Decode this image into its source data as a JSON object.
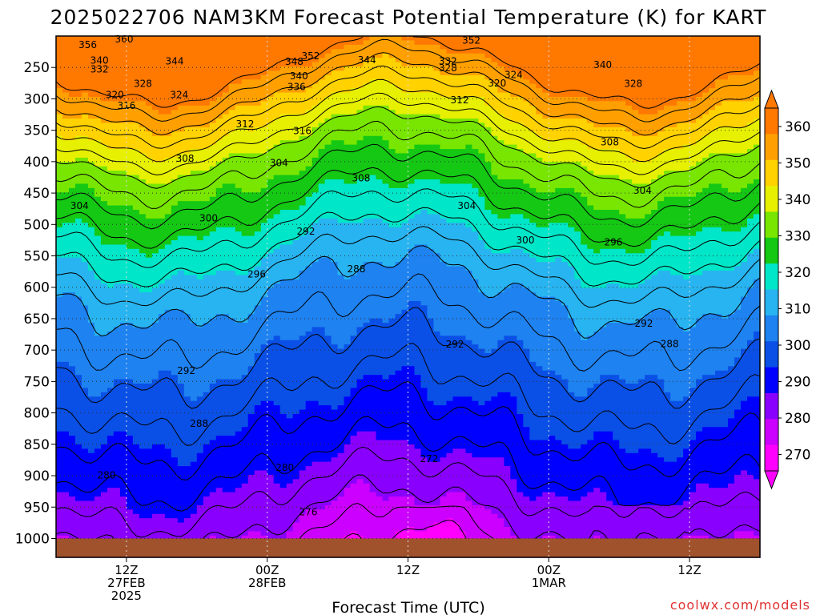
{
  "chart_data": {
    "type": "contour",
    "title": "2025022706 NAM3KM Forecast Potential Temperature (K) for KART",
    "xlabel": "Forecast Time (UTC)",
    "credit": "coolwx.com/models",
    "y_ticks": [
      "250",
      "300",
      "350",
      "400",
      "450",
      "500",
      "550",
      "600",
      "650",
      "700",
      "750",
      "800",
      "850",
      "900",
      "950",
      "1000"
    ],
    "x_ticks": [
      {
        "lines": [
          "12Z",
          "27FEB",
          "2025"
        ]
      },
      {
        "lines": [
          "00Z",
          "28FEB"
        ]
      },
      {
        "lines": [
          "12Z"
        ]
      },
      {
        "lines": [
          "00Z",
          "1MAR"
        ]
      },
      {
        "lines": [
          "12Z"
        ]
      }
    ],
    "x_tick_hours": [
      12,
      24,
      36,
      48,
      60
    ],
    "x_range_hours": [
      6,
      66
    ],
    "y_range_hpa": [
      200,
      1030
    ],
    "colorbar": {
      "ticks": [
        "360",
        "350",
        "340",
        "330",
        "320",
        "310",
        "300",
        "290",
        "280",
        "270"
      ],
      "levels": [
        270,
        280,
        290,
        300,
        310,
        320,
        330,
        340,
        350,
        360
      ],
      "colors": [
        "#ff00ff",
        "#cc00ff",
        "#8a00ff",
        "#0000ff",
        "#0a50e6",
        "#1e82f0",
        "#28b4f0",
        "#00e6c8",
        "#14c814",
        "#78e600",
        "#e6f000",
        "#ffd200",
        "#ffa000",
        "#ff7800"
      ]
    },
    "contour_labels": [
      {
        "text": "356",
        "h": 8.7,
        "p": 214
      },
      {
        "text": "360",
        "h": 11.8,
        "p": 205
      },
      {
        "text": "352",
        "h": 41.4,
        "p": 207
      },
      {
        "text": "352",
        "h": 27.7,
        "p": 232
      },
      {
        "text": "348",
        "h": 26.3,
        "p": 241
      },
      {
        "text": "344",
        "h": 32.5,
        "p": 238
      },
      {
        "text": "344",
        "h": 16.1,
        "p": 240
      },
      {
        "text": "340",
        "h": 9.7,
        "p": 239
      },
      {
        "text": "332",
        "h": 9.7,
        "p": 253
      },
      {
        "text": "332",
        "h": 39.4,
        "p": 240
      },
      {
        "text": "328",
        "h": 39.4,
        "p": 251
      },
      {
        "text": "324",
        "h": 45.0,
        "p": 262
      },
      {
        "text": "320",
        "h": 43.6,
        "p": 275
      },
      {
        "text": "340",
        "h": 52.6,
        "p": 246
      },
      {
        "text": "328",
        "h": 55.2,
        "p": 276
      },
      {
        "text": "328",
        "h": 13.4,
        "p": 276
      },
      {
        "text": "324",
        "h": 16.5,
        "p": 294
      },
      {
        "text": "320",
        "h": 11.0,
        "p": 294
      },
      {
        "text": "340",
        "h": 26.7,
        "p": 264
      },
      {
        "text": "336",
        "h": 26.5,
        "p": 281
      },
      {
        "text": "316",
        "h": 12.0,
        "p": 311
      },
      {
        "text": "312",
        "h": 40.4,
        "p": 302
      },
      {
        "text": "312",
        "h": 22.1,
        "p": 340
      },
      {
        "text": "316",
        "h": 27.0,
        "p": 351
      },
      {
        "text": "308",
        "h": 53.2,
        "p": 369
      },
      {
        "text": "308",
        "h": 17.0,
        "p": 395
      },
      {
        "text": "304",
        "h": 25.0,
        "p": 402
      },
      {
        "text": "308",
        "h": 32.0,
        "p": 426
      },
      {
        "text": "304",
        "h": 56.0,
        "p": 446
      },
      {
        "text": "304",
        "h": 8.0,
        "p": 470
      },
      {
        "text": "304",
        "h": 41.0,
        "p": 470
      },
      {
        "text": "300",
        "h": 19.0,
        "p": 490
      },
      {
        "text": "300",
        "h": 46.0,
        "p": 525
      },
      {
        "text": "296",
        "h": 53.5,
        "p": 528
      },
      {
        "text": "292",
        "h": 27.3,
        "p": 511
      },
      {
        "text": "296",
        "h": 23.1,
        "p": 579
      },
      {
        "text": "288",
        "h": 31.6,
        "p": 571
      },
      {
        "text": "292",
        "h": 56.1,
        "p": 658
      },
      {
        "text": "288",
        "h": 58.3,
        "p": 690
      },
      {
        "text": "292",
        "h": 40.0,
        "p": 691
      },
      {
        "text": "292",
        "h": 17.1,
        "p": 733
      },
      {
        "text": "288",
        "h": 18.2,
        "p": 817
      },
      {
        "text": "272",
        "h": 37.8,
        "p": 873
      },
      {
        "text": "280",
        "h": 10.3,
        "p": 899
      },
      {
        "text": "280",
        "h": 25.5,
        "p": 887
      },
      {
        "text": "276",
        "h": 27.5,
        "p": 958
      }
    ]
  }
}
